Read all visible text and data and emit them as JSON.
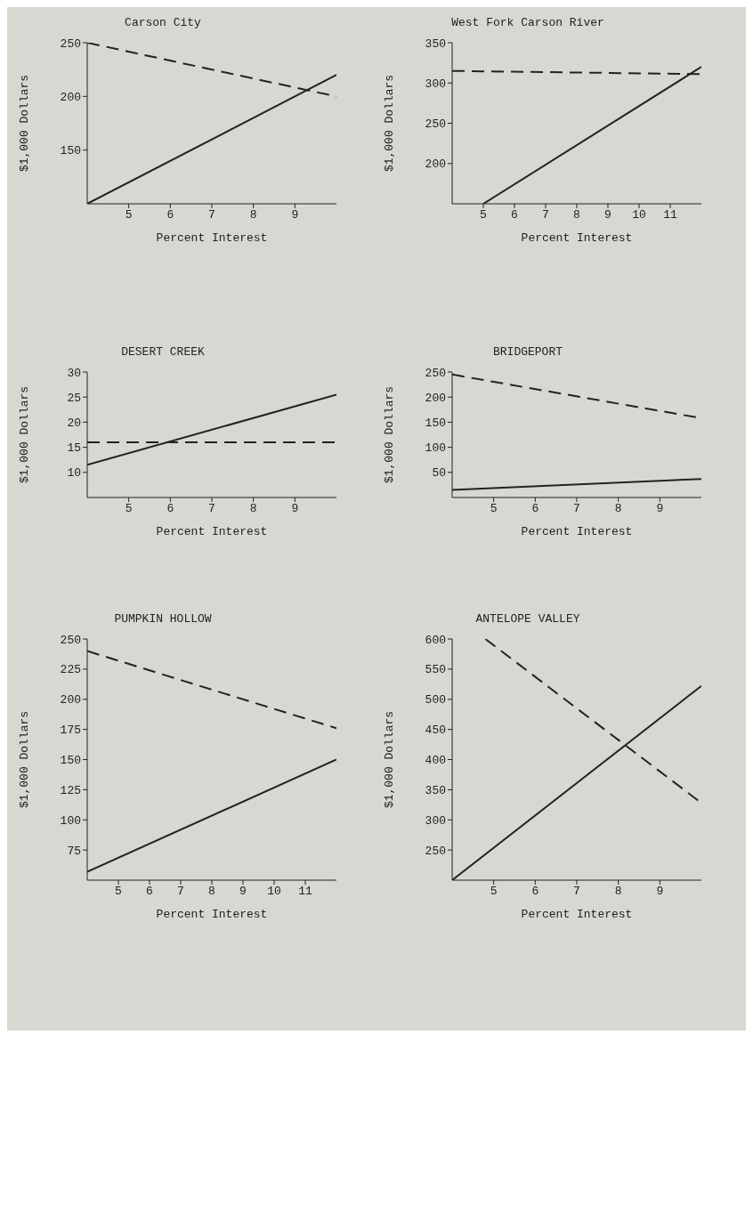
{
  "chart_data": [
    {
      "type": "line",
      "title": "Carson City",
      "xlabel": "Percent Interest",
      "ylabel": "$1,000 Dollars",
      "xlim": [
        4,
        10
      ],
      "xticks": [
        5,
        6,
        7,
        8,
        9
      ],
      "ylim": [
        100,
        250
      ],
      "yticks": [
        150,
        200,
        250
      ],
      "marker": "none",
      "series": [
        {
          "x": [
            4,
            10
          ],
          "values": [
            100,
            220
          ],
          "color": "#222222",
          "line_style": "solid"
        },
        {
          "x": [
            4,
            10
          ],
          "values": [
            250,
            200
          ],
          "color": "#222222",
          "line_style": "dashed"
        }
      ]
    },
    {
      "type": "line",
      "title": "West Fork Carson River",
      "xlabel": "Percent Interest",
      "ylabel": "$1,000 Dollars",
      "xlim": [
        4,
        12
      ],
      "xticks": [
        5,
        6,
        7,
        8,
        9,
        10,
        11
      ],
      "ylim": [
        150,
        350
      ],
      "yticks": [
        200,
        250,
        300,
        350
      ],
      "marker": "none",
      "series": [
        {
          "x": [
            5,
            12
          ],
          "values": [
            150,
            320
          ],
          "color": "#222222",
          "line_style": "solid"
        },
        {
          "x": [
            4,
            12
          ],
          "values": [
            315,
            311
          ],
          "color": "#222222",
          "line_style": "dashed"
        }
      ]
    },
    {
      "type": "line",
      "title": "DESERT CREEK",
      "xlabel": "Percent Interest",
      "ylabel": "$1,000 Dollars",
      "xlim": [
        4,
        10
      ],
      "xticks": [
        5,
        6,
        7,
        8,
        9
      ],
      "ylim": [
        5,
        30
      ],
      "yticks": [
        10,
        15,
        20,
        25,
        30
      ],
      "marker": "none",
      "series": [
        {
          "x": [
            4,
            10
          ],
          "values": [
            11.5,
            25.5
          ],
          "color": "#222222",
          "line_style": "solid"
        },
        {
          "x": [
            4,
            10
          ],
          "values": [
            16,
            16
          ],
          "color": "#222222",
          "line_style": "dashed"
        }
      ]
    },
    {
      "type": "line",
      "title": "BRIDGEPORT",
      "xlabel": "Percent Interest",
      "ylabel": "$1,000 Dollars",
      "xlim": [
        4,
        10
      ],
      "xticks": [
        5,
        6,
        7,
        8,
        9
      ],
      "ylim": [
        0,
        250
      ],
      "yticks": [
        50,
        100,
        150,
        200,
        250
      ],
      "marker": "none",
      "series": [
        {
          "x": [
            4,
            10
          ],
          "values": [
            15,
            37
          ],
          "color": "#222222",
          "line_style": "solid"
        },
        {
          "x": [
            4,
            10
          ],
          "values": [
            245,
            158
          ],
          "color": "#222222",
          "line_style": "dashed"
        }
      ]
    },
    {
      "type": "line",
      "title": "PUMPKIN HOLLOW",
      "xlabel": "Percent Interest",
      "ylabel": "$1,000 Dollars",
      "xlim": [
        4,
        12
      ],
      "xticks": [
        5,
        6,
        7,
        8,
        9,
        10,
        11
      ],
      "ylim": [
        50,
        250
      ],
      "yticks": [
        75,
        100,
        125,
        150,
        175,
        200,
        225,
        250
      ],
      "marker": "none",
      "series": [
        {
          "x": [
            4,
            12
          ],
          "values": [
            57,
            150
          ],
          "color": "#222222",
          "line_style": "solid"
        },
        {
          "x": [
            4,
            12
          ],
          "values": [
            240,
            176
          ],
          "color": "#222222",
          "line_style": "dashed"
        }
      ]
    },
    {
      "type": "line",
      "title": "ANTELOPE VALLEY",
      "xlabel": "Percent Interest",
      "ylabel": "$1,000 Dollars",
      "xlim": [
        4,
        10
      ],
      "xticks": [
        5,
        6,
        7,
        8,
        9
      ],
      "ylim": [
        200,
        600
      ],
      "yticks": [
        250,
        300,
        350,
        400,
        450,
        500,
        550,
        600
      ],
      "marker": "none",
      "series": [
        {
          "x": [
            4,
            10
          ],
          "values": [
            200,
            522
          ],
          "color": "#222222",
          "line_style": "solid"
        },
        {
          "x": [
            4.8,
            10
          ],
          "values": [
            600,
            328
          ],
          "color": "#222222",
          "line_style": "dashed"
        }
      ]
    }
  ]
}
